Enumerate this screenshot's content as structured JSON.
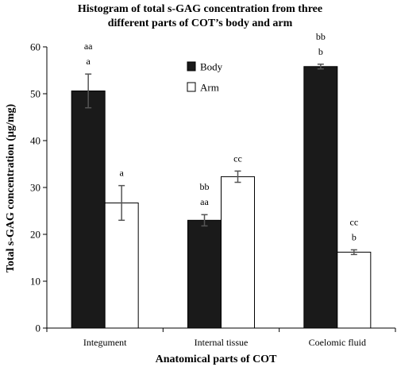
{
  "chart_data": {
    "type": "bar",
    "title_line1": "Histogram of total s-GAG concentration from three",
    "title_line2": "different parts of COT’s body and arm",
    "xlabel": "Anatomical parts of COT",
    "ylabel": "Total s-GAG concentration (μg/mg)",
    "ylim": [
      0,
      60
    ],
    "yticks": [
      0,
      10,
      20,
      30,
      40,
      50,
      60
    ],
    "categories": [
      "Integument",
      "Internal tissue",
      "Coelomic fluid"
    ],
    "legend_position": "top-center",
    "grid": false,
    "series": [
      {
        "name": "Body",
        "color": "#1a1a1a",
        "values": [
          50.6,
          23.0,
          55.8
        ],
        "errors": [
          3.6,
          1.2,
          0.5
        ],
        "annotations": [
          [
            "aa",
            "a"
          ],
          [
            "bb",
            "aa"
          ],
          [
            "bb",
            "b"
          ]
        ]
      },
      {
        "name": "Arm",
        "color": "#ffffff",
        "values": [
          26.7,
          32.3,
          16.2
        ],
        "errors": [
          3.7,
          1.2,
          0.5
        ],
        "annotations": [
          [
            "a"
          ],
          [
            "cc"
          ],
          [
            "cc",
            "b"
          ]
        ]
      }
    ]
  }
}
